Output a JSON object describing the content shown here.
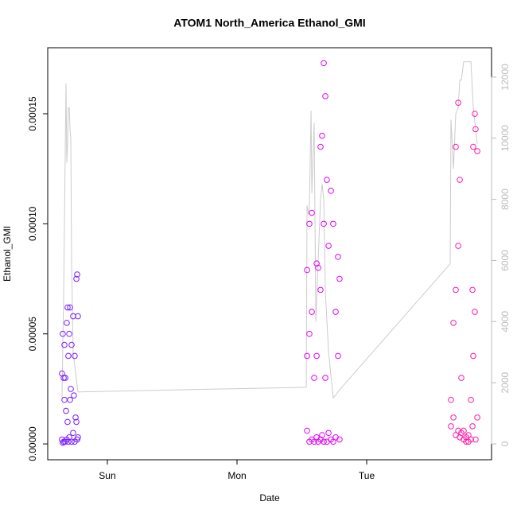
{
  "chart_data": {
    "type": "scatter",
    "title": "ATOM1 North_America Ethanol_GMI",
    "x_label": "Date",
    "y_label": "Ethanol_GMI",
    "xlim": [
      0.54,
      3.963
    ],
    "xticks": [
      {
        "value": 1,
        "label": "Sun"
      },
      {
        "value": 2,
        "label": "Mon"
      },
      {
        "value": 3,
        "label": "Tue"
      }
    ],
    "ylim": [
      -7.2e-06,
      0.00018
    ],
    "yticks": [
      {
        "value": 0,
        "label": "0.00000"
      },
      {
        "value": 5e-05,
        "label": "0.00005"
      },
      {
        "value": 0.0001,
        "label": "0.00010"
      },
      {
        "value": 0.00015,
        "label": "0.00015"
      }
    ],
    "y2lim": [
      -520,
      12960
    ],
    "y2ticks": [
      0,
      2000,
      4000,
      6000,
      8000,
      10000,
      12000
    ],
    "y2_color": "#bbbbbb",
    "series": [
      {
        "color": "#7a1cff",
        "x": [
          0.65,
          0.65,
          0.656,
          0.656,
          0.663,
          0.663,
          0.669,
          0.669,
          0.675,
          0.675,
          0.687,
          0.687,
          0.693,
          0.693,
          0.699,
          0.699,
          0.706,
          0.706,
          0.712,
          0.712,
          0.724,
          0.724,
          0.736,
          0.736,
          0.748,
          0.748,
          0.761,
          0.761,
          0.767,
          0.767,
          0.773,
          0.773,
          0.681,
          0.718,
          0.742,
          0.755
        ],
        "values": [
          3.2e-05,
          2e-06,
          5e-05,
          5e-07,
          3e-05,
          1e-06,
          2e-05,
          4.5e-05,
          1e-06,
          3e-05,
          5.5e-05,
          2e-06,
          6.2e-05,
          1e-05,
          4e-05,
          1e-06,
          5e-05,
          3e-06,
          6.2e-05,
          2e-05,
          4.5e-05,
          1e-06,
          5.8e-05,
          5e-06,
          4e-05,
          1e-06,
          7.5e-05,
          1e-05,
          7.7e-05,
          2e-06,
          5.8e-05,
          3e-06,
          1.5e-05,
          2.5e-05,
          2.2e-05,
          1.2e-05
        ]
      },
      {
        "color": "#e400f5",
        "x": [
          2.54,
          2.54,
          2.54,
          2.558,
          2.558,
          2.558,
          2.577,
          2.577,
          2.577,
          2.595,
          2.595,
          2.614,
          2.614,
          2.614,
          2.626,
          2.626,
          2.644,
          2.644,
          2.644,
          2.656,
          2.656,
          2.669,
          2.669,
          2.669,
          2.681,
          2.681,
          2.693,
          2.693,
          2.706,
          2.706,
          2.724,
          2.724,
          2.742,
          2.742,
          2.761,
          2.761,
          2.779,
          2.779,
          2.791,
          2.791
        ],
        "values": [
          7.9e-05,
          4e-05,
          6e-06,
          0.0001,
          5e-05,
          1e-06,
          0.000105,
          6e-05,
          2e-06,
          3e-05,
          1e-06,
          8.2e-05,
          4e-05,
          3e-06,
          8e-05,
          1e-06,
          0.000135,
          7e-05,
          2e-06,
          0.00014,
          4e-06,
          0.000173,
          0.0001,
          1e-06,
          0.000158,
          3e-05,
          0.00012,
          1e-06,
          9e-05,
          5e-06,
          0.000115,
          2e-06,
          0.0001,
          1e-06,
          6e-05,
          3e-06,
          8.5e-05,
          4e-05,
          7.5e-05,
          2e-06
        ]
      },
      {
        "color": "#ff18a6",
        "x": [
          3.65,
          3.65,
          3.669,
          3.669,
          3.687,
          3.687,
          3.687,
          3.706,
          3.706,
          3.706,
          3.718,
          3.718,
          3.73,
          3.73,
          3.748,
          3.748,
          3.767,
          3.767,
          3.785,
          3.785,
          3.804,
          3.804,
          3.816,
          3.816,
          3.822,
          3.822,
          3.834,
          3.834,
          3.84,
          3.84,
          3.853,
          3.853
        ],
        "values": [
          2e-05,
          8e-06,
          5.5e-05,
          1.2e-05,
          0.000135,
          7e-05,
          4e-06,
          0.000155,
          9e-05,
          6e-06,
          0.00012,
          3e-06,
          3e-05,
          5e-06,
          6e-06,
          2e-06,
          3e-06,
          1e-06,
          4e-06,
          1e-06,
          2e-05,
          2e-06,
          7e-05,
          8e-06,
          0.000135,
          4e-05,
          0.00015,
          6e-05,
          0.000143,
          2e-06,
          0.000133,
          1.2e-05
        ]
      },
      {
        "type": "line",
        "axis": "y2",
        "color": "#cccccc",
        "x": [
          0.65,
          0.663,
          0.675,
          0.681,
          0.687,
          0.693,
          0.699,
          0.706,
          0.712,
          0.718,
          0.724,
          0.736,
          0.773,
          2.534,
          2.54,
          2.552,
          2.558,
          2.571,
          2.577,
          2.595,
          2.608,
          2.626,
          2.644,
          2.656,
          2.669,
          2.681,
          2.706,
          2.742,
          2.798,
          3.644,
          3.65,
          3.669,
          3.687,
          3.706,
          3.718,
          3.73,
          3.748,
          3.804,
          3.822,
          3.853
        ],
        "values": [
          1500,
          5000,
          9500,
          11800,
          9200,
          9800,
          11000,
          11000,
          10300,
          10000,
          6000,
          3000,
          1700,
          1850,
          7800,
          7500,
          7700,
          10900,
          8200,
          10500,
          4000,
          6000,
          8000,
          8500,
          8000,
          5000,
          3000,
          1500,
          1800,
          5890,
          10600,
          9000,
          10800,
          11000,
          11900,
          11900,
          12500,
          12500,
          11000,
          9800
        ]
      }
    ]
  }
}
